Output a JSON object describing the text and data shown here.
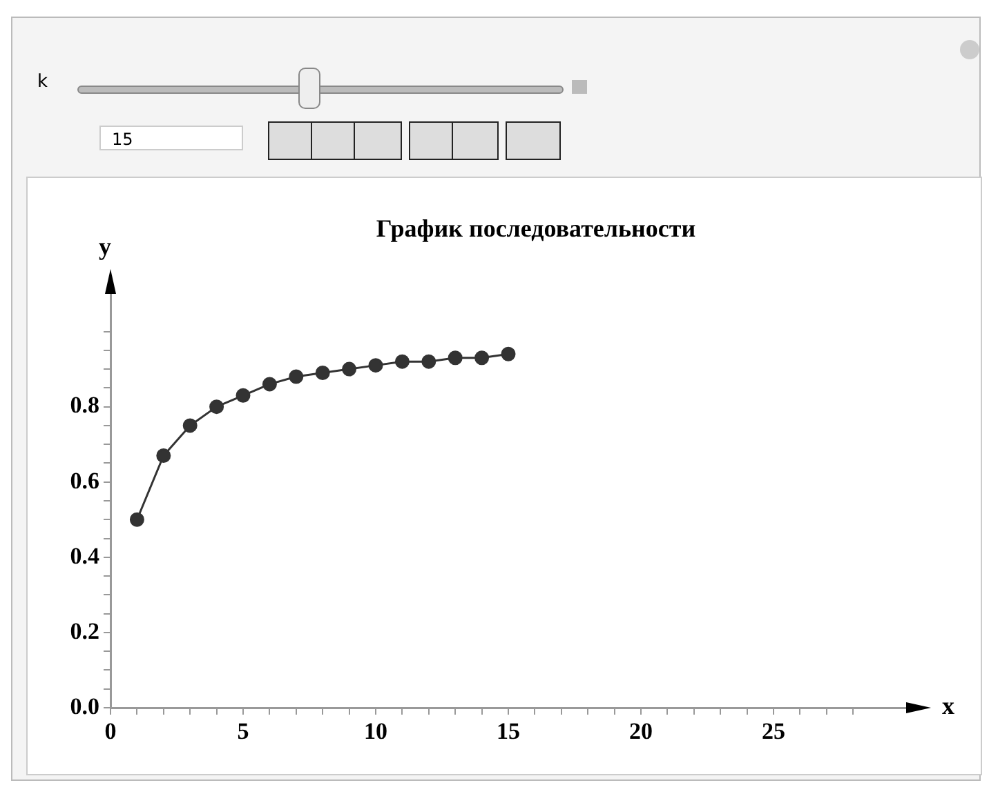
{
  "chart_data": {
    "type": "line",
    "title": "График последовательности",
    "xlabel": "x",
    "ylabel": "y",
    "x": [
      1,
      2,
      3,
      4,
      5,
      6,
      7,
      8,
      9,
      10,
      11,
      12,
      13,
      14,
      15
    ],
    "series": [
      {
        "color": "#333333",
        "values": [
          0.5,
          0.67,
          0.75,
          0.8,
          0.83,
          0.86,
          0.88,
          0.89,
          0.9,
          0.91,
          0.92,
          0.92,
          0.93,
          0.93,
          0.94
        ]
      }
    ],
    "xlim": [
      0,
      30
    ],
    "ylim": [
      0,
      1.1
    ],
    "xticks": [
      0,
      {
        "value": 1,
        "label": null
      },
      {
        "value": 2,
        "label": null
      },
      {
        "value": 3,
        "label": null
      },
      {
        "value": 4,
        "label": null
      },
      5,
      {
        "value": 6,
        "label": null
      },
      {
        "value": 7,
        "label": null
      },
      {
        "value": 8,
        "label": null
      },
      {
        "value": 9,
        "label": null
      },
      10,
      {
        "value": 11,
        "label": null
      },
      {
        "value": 12,
        "label": null
      },
      {
        "value": 13,
        "label": null
      },
      {
        "value": 14,
        "label": null
      },
      15,
      {
        "value": 16,
        "label": null
      },
      {
        "value": 17,
        "label": null
      },
      {
        "value": 18,
        "label": null
      },
      {
        "value": 19,
        "label": null
      },
      20,
      {
        "value": 21,
        "label": null
      },
      {
        "value": 22,
        "label": null
      },
      {
        "value": 23,
        "label": null
      },
      {
        "value": 24,
        "label": null
      },
      25,
      {
        "value": 26,
        "label": null
      },
      {
        "value": 27,
        "label": null
      },
      {
        "value": 28,
        "label": null
      }
    ],
    "yticks": [
      {
        "value": 0,
        "label": "0.0"
      },
      {
        "value": 0.05,
        "label": null
      },
      {
        "value": 0.1,
        "label": null
      },
      {
        "value": 0.15,
        "label": null
      },
      0.2,
      {
        "value": 0.25,
        "label": null
      },
      {
        "value": 0.3,
        "label": null
      },
      {
        "value": 0.35,
        "label": null
      },
      0.4,
      {
        "value": 0.45,
        "label": null
      },
      {
        "value": 0.5,
        "label": null
      },
      {
        "value": 0.55,
        "label": null
      },
      0.6,
      {
        "value": 0.65,
        "label": null
      },
      {
        "value": 0.7,
        "label": null
      },
      {
        "value": 0.75,
        "label": null
      },
      0.8,
      {
        "value": 0.85,
        "label": null
      },
      {
        "value": 0.9,
        "label": null
      },
      {
        "value": 0.95,
        "label": null
      },
      {
        "value": 1,
        "label": null
      }
    ],
    "grid": false,
    "legend": false,
    "marker": "circle",
    "line_style": "solid",
    "annotations": [
      "k",
      "15"
    ]
  }
}
